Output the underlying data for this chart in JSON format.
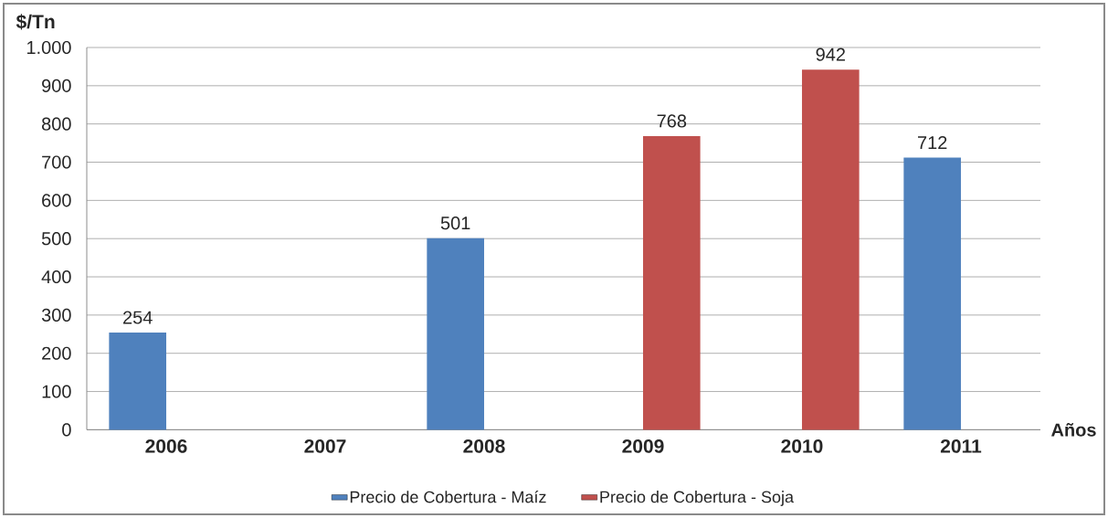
{
  "chart_data": {
    "type": "bar",
    "ylabel": "$/Tn",
    "xlabel": "Años",
    "categories": [
      "2006",
      "2007",
      "2008",
      "2009",
      "2010",
      "2011"
    ],
    "series": [
      {
        "name": "Precio de Cobertura - Maíz",
        "color": "#4f81bd",
        "values": [
          254,
          null,
          501,
          null,
          null,
          712
        ]
      },
      {
        "name": "Precio de Cobertura - Soja",
        "color": "#c0504d",
        "values": [
          null,
          null,
          null,
          768,
          942,
          null
        ]
      }
    ],
    "ylim": [
      0,
      1000
    ],
    "yticks": [
      0,
      100,
      200,
      300,
      400,
      500,
      600,
      700,
      800,
      900,
      {
        "value": 1000,
        "label": "1.000"
      }
    ],
    "grid": "y",
    "legend": "bottom",
    "data_labels": true
  }
}
